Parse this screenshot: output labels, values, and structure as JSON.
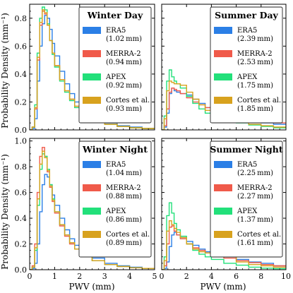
{
  "figure": {
    "ylabel": "Probability Density (mm⁻¹)",
    "xlabel": "PWV (mm)",
    "colors": {
      "ERA5": "#2b7fe6",
      "MERRA-2": "#f05a4a",
      "APEX": "#22e07a",
      "Cortes et al.": "#d8a21e"
    }
  },
  "chart_data": [
    {
      "type": "line",
      "title": "Winter Day",
      "xlabel": "",
      "ylabel": "Probability Density (mm⁻¹)",
      "xlim": [
        0,
        5
      ],
      "ylim": [
        0,
        0.9
      ],
      "xticks": [
        "0",
        "1",
        "2",
        "3",
        "4",
        "5"
      ],
      "yticks": [
        "0.0",
        "0.2",
        "0.4",
        "0.6",
        "0.8"
      ],
      "show_xticklabels": false,
      "show_yticklabels": true,
      "x": [
        0.0,
        0.1,
        0.2,
        0.3,
        0.4,
        0.5,
        0.6,
        0.7,
        0.8,
        0.9,
        1.0,
        1.2,
        1.4,
        1.6,
        1.8,
        2.0,
        2.5,
        3.0,
        3.5,
        4.0,
        4.5,
        5.0
      ],
      "series": [
        {
          "name": "ERA5",
          "legend": "(1.02 mm)",
          "values": [
            0.0,
            0.01,
            0.08,
            0.35,
            0.6,
            0.76,
            0.82,
            0.8,
            0.72,
            0.62,
            0.53,
            0.42,
            0.33,
            0.26,
            0.2,
            0.16,
            0.09,
            0.05,
            0.03,
            0.02,
            0.01,
            0.005
          ]
        },
        {
          "name": "MERRA-2",
          "legend": "(0.94 mm)",
          "values": [
            0.0,
            0.02,
            0.15,
            0.5,
            0.75,
            0.85,
            0.83,
            0.75,
            0.64,
            0.55,
            0.46,
            0.36,
            0.28,
            0.22,
            0.17,
            0.13,
            0.07,
            0.04,
            0.025,
            0.015,
            0.01,
            0.005
          ]
        },
        {
          "name": "APEX",
          "legend": "(0.92 mm)",
          "values": [
            0.0,
            0.02,
            0.18,
            0.55,
            0.8,
            0.88,
            0.86,
            0.76,
            0.64,
            0.54,
            0.45,
            0.35,
            0.27,
            0.21,
            0.16,
            0.12,
            0.07,
            0.04,
            0.025,
            0.015,
            0.01,
            0.005
          ]
        },
        {
          "name": "Cortes et al.",
          "legend": "(0.93 mm)",
          "values": [
            0.0,
            0.02,
            0.16,
            0.52,
            0.77,
            0.86,
            0.84,
            0.75,
            0.64,
            0.55,
            0.46,
            0.36,
            0.28,
            0.22,
            0.17,
            0.13,
            0.07,
            0.04,
            0.025,
            0.015,
            0.01,
            0.005
          ]
        }
      ]
    },
    {
      "type": "line",
      "title": "Summer Day",
      "xlabel": "",
      "ylabel": "",
      "xlim": [
        0,
        10
      ],
      "ylim": [
        0,
        0.9
      ],
      "xticks": [
        "0",
        "2",
        "4",
        "6",
        "8",
        "10"
      ],
      "yticks": [
        "0.0",
        "0.2",
        "0.4",
        "0.6",
        "0.8"
      ],
      "show_xticklabels": false,
      "show_yticklabels": false,
      "x": [
        0.0,
        0.2,
        0.4,
        0.6,
        0.8,
        1.0,
        1.2,
        1.5,
        2.0,
        2.5,
        3.0,
        3.5,
        4.0,
        5.0,
        6.0,
        7.0,
        8.0,
        9.0,
        10.0
      ],
      "series": [
        {
          "name": "ERA5",
          "legend": "(2.39 mm)",
          "values": [
            0.0,
            0.02,
            0.12,
            0.26,
            0.3,
            0.28,
            0.27,
            0.26,
            0.25,
            0.22,
            0.19,
            0.16,
            0.14,
            0.11,
            0.09,
            0.07,
            0.05,
            0.04,
            0.03
          ]
        },
        {
          "name": "MERRA-2",
          "legend": "(2.53 mm)",
          "values": [
            0.0,
            0.03,
            0.15,
            0.27,
            0.3,
            0.29,
            0.28,
            0.26,
            0.23,
            0.2,
            0.18,
            0.16,
            0.14,
            0.11,
            0.09,
            0.075,
            0.06,
            0.05,
            0.04
          ]
        },
        {
          "name": "APEX",
          "legend": "(1.75 mm)",
          "values": [
            0.0,
            0.1,
            0.35,
            0.43,
            0.38,
            0.35,
            0.33,
            0.3,
            0.24,
            0.19,
            0.15,
            0.12,
            0.1,
            0.07,
            0.05,
            0.035,
            0.025,
            0.015,
            0.01
          ]
        },
        {
          "name": "Cortes et al.",
          "legend": "(1.85 mm)",
          "values": [
            0.0,
            0.08,
            0.28,
            0.35,
            0.34,
            0.33,
            0.33,
            0.32,
            0.27,
            0.22,
            0.18,
            0.14,
            0.11,
            0.08,
            0.055,
            0.04,
            0.03,
            0.02,
            0.01
          ]
        }
      ]
    },
    {
      "type": "line",
      "title": "Winter Night",
      "xlabel": "PWV (mm)",
      "ylabel": "Probability Density (mm⁻¹)",
      "xlim": [
        0,
        5
      ],
      "ylim": [
        0,
        1.02
      ],
      "xticks": [
        "0",
        "1",
        "2",
        "3",
        "4",
        "5"
      ],
      "yticks": [
        "0.0",
        "0.2",
        "0.4",
        "0.6",
        "0.8",
        "1.0"
      ],
      "show_xticklabels": true,
      "show_yticklabels": true,
      "x": [
        0.0,
        0.1,
        0.2,
        0.3,
        0.4,
        0.5,
        0.6,
        0.7,
        0.8,
        0.9,
        1.0,
        1.2,
        1.4,
        1.6,
        1.8,
        2.0,
        2.5,
        3.0,
        3.5,
        4.0,
        4.5,
        5.0
      ],
      "series": [
        {
          "name": "ERA5",
          "legend": "(1.04 mm)",
          "values": [
            0.0,
            0.01,
            0.05,
            0.2,
            0.45,
            0.66,
            0.74,
            0.72,
            0.66,
            0.58,
            0.5,
            0.4,
            0.31,
            0.24,
            0.19,
            0.15,
            0.09,
            0.05,
            0.03,
            0.02,
            0.01,
            0.005
          ]
        },
        {
          "name": "MERRA-2",
          "legend": "(0.88 mm)",
          "values": [
            0.0,
            0.03,
            0.2,
            0.6,
            0.88,
            0.95,
            0.88,
            0.76,
            0.64,
            0.53,
            0.44,
            0.34,
            0.26,
            0.2,
            0.16,
            0.12,
            0.07,
            0.04,
            0.025,
            0.015,
            0.01,
            0.005
          ]
        },
        {
          "name": "APEX",
          "legend": "(0.86 mm)",
          "values": [
            0.0,
            0.02,
            0.15,
            0.5,
            0.78,
            0.9,
            0.88,
            0.78,
            0.66,
            0.55,
            0.45,
            0.35,
            0.27,
            0.21,
            0.16,
            0.12,
            0.07,
            0.04,
            0.025,
            0.015,
            0.01,
            0.005
          ]
        },
        {
          "name": "Cortes et al.",
          "legend": "(0.89 mm)",
          "values": [
            0.0,
            0.02,
            0.17,
            0.55,
            0.82,
            0.92,
            0.87,
            0.77,
            0.65,
            0.54,
            0.45,
            0.35,
            0.27,
            0.21,
            0.16,
            0.12,
            0.07,
            0.04,
            0.025,
            0.015,
            0.01,
            0.005
          ]
        }
      ]
    },
    {
      "type": "line",
      "title": "Summer Night",
      "xlabel": "PWV (mm)",
      "ylabel": "",
      "xlim": [
        0,
        10
      ],
      "ylim": [
        0,
        1.02
      ],
      "xticks": [
        "0",
        "2",
        "4",
        "6",
        "8",
        "10"
      ],
      "yticks": [
        "0.0",
        "0.2",
        "0.4",
        "0.6",
        "0.8",
        "1.0"
      ],
      "show_xticklabels": true,
      "show_yticklabels": false,
      "x": [
        0.0,
        0.2,
        0.4,
        0.6,
        0.8,
        1.0,
        1.2,
        1.5,
        2.0,
        2.5,
        3.0,
        3.5,
        4.0,
        5.0,
        6.0,
        7.0,
        8.0,
        9.0,
        10.0
      ],
      "series": [
        {
          "name": "ERA5",
          "legend": "(2.25 mm)",
          "values": [
            0.0,
            0.01,
            0.06,
            0.18,
            0.27,
            0.29,
            0.27,
            0.25,
            0.22,
            0.19,
            0.16,
            0.14,
            0.13,
            0.1,
            0.08,
            0.06,
            0.05,
            0.03,
            0.02
          ]
        },
        {
          "name": "MERRA-2",
          "legend": "(2.27 mm)",
          "values": [
            0.0,
            0.03,
            0.2,
            0.33,
            0.34,
            0.3,
            0.27,
            0.24,
            0.2,
            0.17,
            0.15,
            0.13,
            0.12,
            0.09,
            0.07,
            0.055,
            0.04,
            0.03,
            0.02
          ]
        },
        {
          "name": "APEX",
          "legend": "(1.37 mm)",
          "values": [
            0.0,
            0.1,
            0.42,
            0.52,
            0.44,
            0.36,
            0.31,
            0.26,
            0.2,
            0.15,
            0.12,
            0.1,
            0.08,
            0.05,
            0.035,
            0.02,
            0.012,
            0.008,
            0.005
          ]
        },
        {
          "name": "Cortes et al.",
          "legend": "(1.61 mm)",
          "values": [
            0.0,
            0.07,
            0.3,
            0.38,
            0.35,
            0.32,
            0.29,
            0.25,
            0.2,
            0.16,
            0.14,
            0.13,
            0.14,
            0.1,
            0.06,
            0.04,
            0.03,
            0.02,
            0.01
          ]
        }
      ]
    }
  ]
}
